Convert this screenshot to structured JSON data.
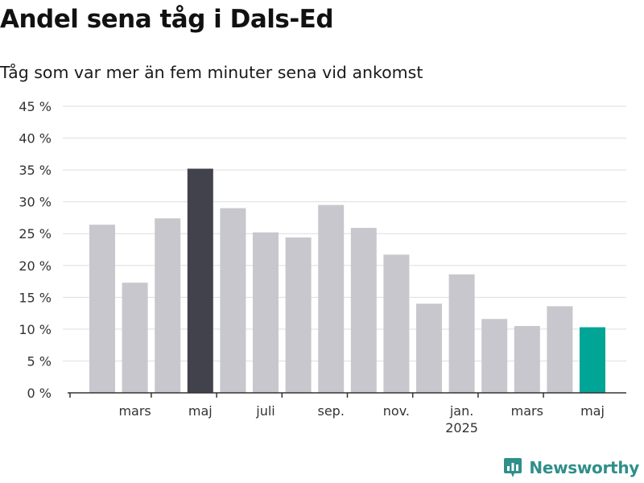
{
  "chart_data": {
    "type": "bar",
    "title": "Andel sena tåg i Dals-Ed",
    "subtitle": "Tåg som var mer än fem minuter sena vid ankomst",
    "values": [
      26.4,
      17.3,
      27.4,
      35.2,
      29.0,
      25.2,
      24.4,
      29.5,
      25.9,
      21.7,
      14.0,
      18.6,
      11.6,
      10.5,
      13.6,
      10.3
    ],
    "bar_colors": [
      "#c8c7cd",
      "#c8c7cd",
      "#c8c7cd",
      "#42424c",
      "#c8c7cd",
      "#c8c7cd",
      "#c8c7cd",
      "#c8c7cd",
      "#c8c7cd",
      "#c8c7cd",
      "#c8c7cd",
      "#c8c7cd",
      "#c8c7cd",
      "#c8c7cd",
      "#c8c7cd",
      "#00a596"
    ],
    "y_ticks": [
      "0 %",
      "5 %",
      "10 %",
      "15 %",
      "20 %",
      "25 %",
      "30 %",
      "35 %",
      "40 %",
      "45 %"
    ],
    "y_tick_values": [
      0,
      5,
      10,
      15,
      20,
      25,
      30,
      35,
      40,
      45
    ],
    "ylim": [
      0,
      45
    ],
    "x_ticks": [
      {
        "label": "mars",
        "sublabel": "",
        "at": 2
      },
      {
        "label": "maj",
        "sublabel": "",
        "at": 4
      },
      {
        "label": "juli",
        "sublabel": "",
        "at": 6
      },
      {
        "label": "sep.",
        "sublabel": "",
        "at": 8
      },
      {
        "label": "nov.",
        "sublabel": "",
        "at": 10
      },
      {
        "label": "jan.",
        "sublabel": "2025",
        "at": 12
      },
      {
        "label": "mars",
        "sublabel": "",
        "at": 14
      },
      {
        "label": "maj",
        "sublabel": "",
        "at": 16
      }
    ],
    "grid": true,
    "legend": "none"
  },
  "brand": {
    "name": "Newsworthy",
    "icon": "newsworthy-logo-icon",
    "color": "#2f8f8a"
  }
}
